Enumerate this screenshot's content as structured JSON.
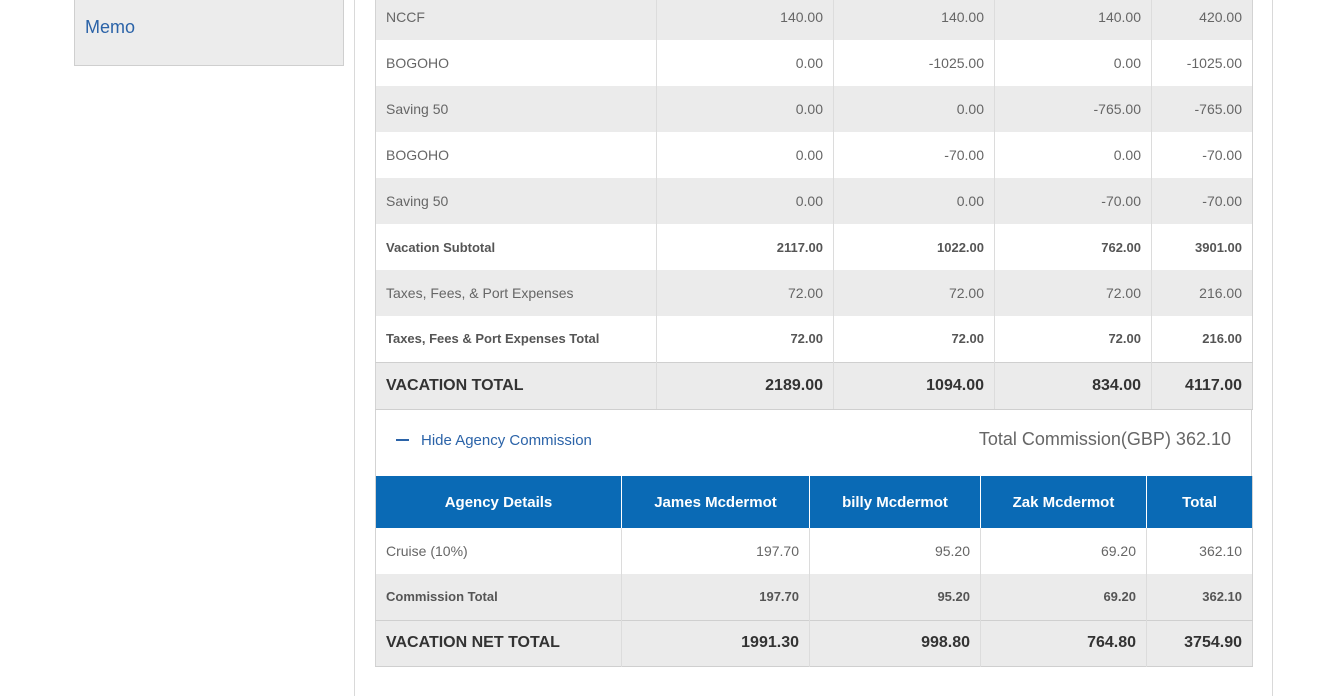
{
  "sidebar": {
    "memo_label": "Memo"
  },
  "pricing": {
    "rows": [
      {
        "label": "NCCF",
        "values": [
          "140.00",
          "140.00",
          "140.00",
          "420.00"
        ],
        "style": "shade"
      },
      {
        "label": "BOGOHO",
        "values": [
          "0.00",
          "-1025.00",
          "0.00",
          "-1025.00"
        ],
        "style": "plain"
      },
      {
        "label": "Saving 50",
        "values": [
          "0.00",
          "0.00",
          "-765.00",
          "-765.00"
        ],
        "style": "shade"
      },
      {
        "label": "BOGOHO",
        "values": [
          "0.00",
          "-70.00",
          "0.00",
          "-70.00"
        ],
        "style": "plain"
      },
      {
        "label": "Saving 50",
        "values": [
          "0.00",
          "0.00",
          "-70.00",
          "-70.00"
        ],
        "style": "shade"
      },
      {
        "label": "Vacation Subtotal",
        "values": [
          "2117.00",
          "1022.00",
          "762.00",
          "3901.00"
        ],
        "style": "bold"
      },
      {
        "label": "Taxes, Fees, & Port Expenses",
        "values": [
          "72.00",
          "72.00",
          "72.00",
          "216.00"
        ],
        "style": "shade"
      },
      {
        "label": "Taxes, Fees & Port Expenses Total",
        "values": [
          "72.00",
          "72.00",
          "72.00",
          "216.00"
        ],
        "style": "bold"
      },
      {
        "label": "VACATION TOTAL",
        "values": [
          "2189.00",
          "1094.00",
          "834.00",
          "4117.00"
        ],
        "style": "total"
      }
    ]
  },
  "commission": {
    "toggle_label": "Hide Agency Commission",
    "total_label": "Total Commission(GBP) 362.10",
    "headers": [
      "Agency Details",
      "James Mcdermot",
      "billy Mcdermot",
      "Zak Mcdermot",
      "Total"
    ],
    "rows": [
      {
        "label": "Cruise (10%)",
        "values": [
          "197.70",
          "95.20",
          "69.20",
          "362.10"
        ],
        "style": "plain"
      },
      {
        "label": "Commission Total",
        "values": [
          "197.70",
          "95.20",
          "69.20",
          "362.10"
        ],
        "style": "shade bold"
      },
      {
        "label": "VACATION NET TOTAL",
        "values": [
          "1991.30",
          "998.80",
          "764.80",
          "3754.90"
        ],
        "style": "total"
      }
    ]
  }
}
